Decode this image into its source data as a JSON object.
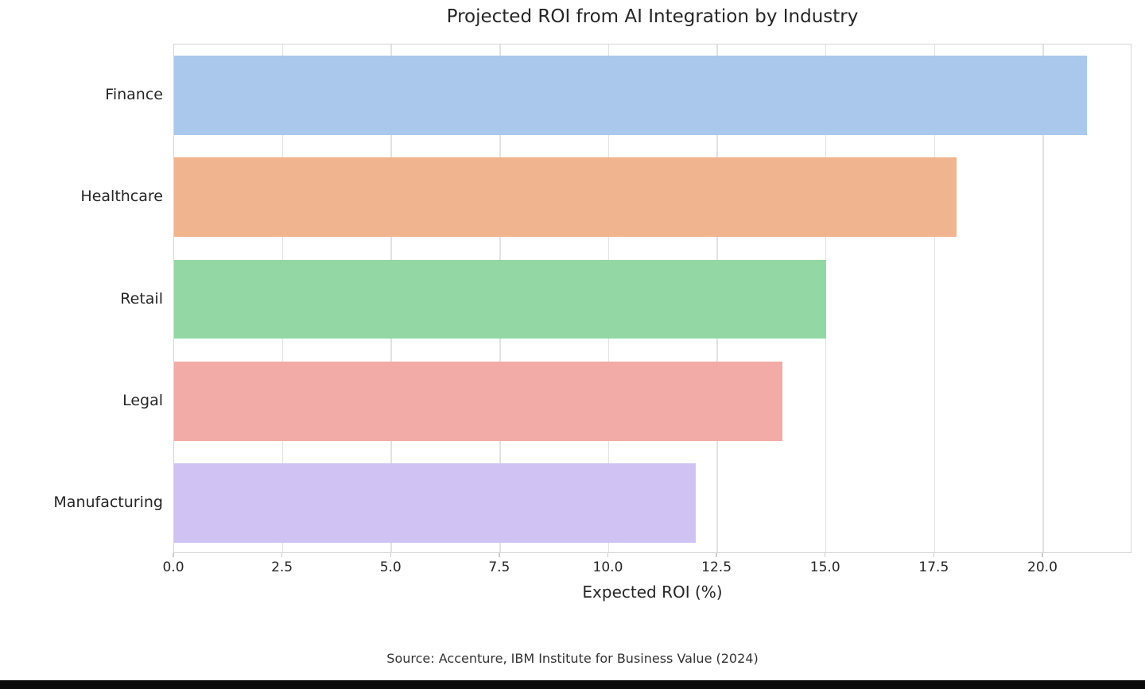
{
  "chart_data": {
    "type": "bar",
    "orientation": "horizontal",
    "title": "Projected ROI from AI Integration by Industry",
    "xlabel": "Expected ROI (%)",
    "ylabel": "",
    "categories": [
      "Finance",
      "Healthcare",
      "Retail",
      "Legal",
      "Manufacturing"
    ],
    "values": [
      21,
      18,
      15,
      14,
      12
    ],
    "bar_colors": [
      "#a9c8ec",
      "#f0b48e",
      "#93d8a4",
      "#f2aba7",
      "#d0c3f4"
    ],
    "xlim": [
      0,
      22.05
    ],
    "xticks": [
      0,
      2.5,
      5,
      7.5,
      10,
      12.5,
      15,
      17.5,
      20
    ],
    "xtick_labels": [
      "0.0",
      "2.5",
      "5.0",
      "7.5",
      "10.0",
      "12.5",
      "15.0",
      "17.5",
      "20.0"
    ],
    "grid": "vertical-on",
    "legend": "none",
    "source": "Source: Accenture, IBM Institute for Business Value (2024)"
  },
  "frame": {
    "bottom_strip_color": "#0a0a0a",
    "grid_color": "#e2e2e2",
    "spine_color": "#d5d5d5",
    "text_color": "#262626"
  }
}
